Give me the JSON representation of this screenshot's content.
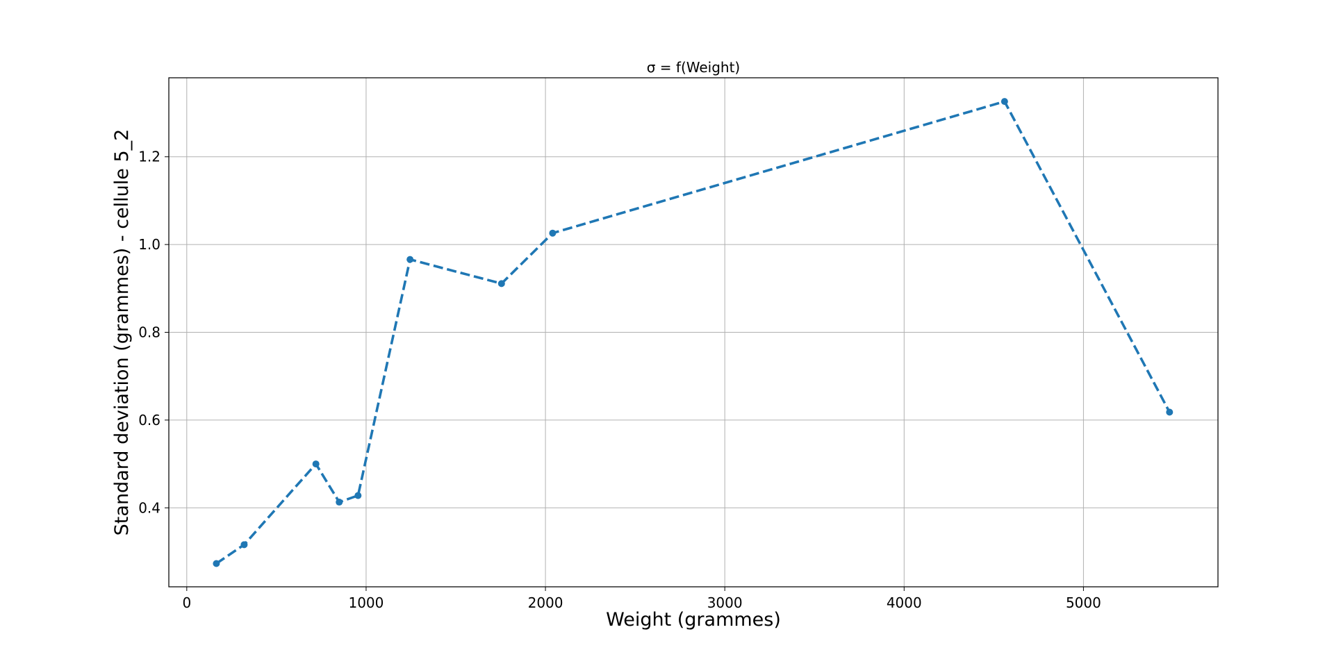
{
  "chart_data": {
    "type": "line",
    "title": "σ  = f(Weight)",
    "xlabel": "Weight (grammes)",
    "ylabel": "Standard deviation (grammes) - cellule 5_2",
    "xlim": [
      -100,
      5750
    ],
    "ylim": [
      0.22,
      1.38
    ],
    "xticks": [
      0,
      1000,
      2000,
      3000,
      4000,
      5000
    ],
    "xtick_labels": [
      "0",
      "1000",
      "2000",
      "3000",
      "4000",
      "5000"
    ],
    "yticks": [
      0.4,
      0.6,
      0.8,
      1.0,
      1.2
    ],
    "ytick_labels": [
      "0.4",
      "0.6",
      "0.8",
      "1.0",
      "1.2"
    ],
    "grid": true,
    "line_style": "dashed",
    "marker": "circle",
    "colors": {
      "series": "#1f77b4",
      "grid": "#b0b0b0",
      "axes": "#000000"
    },
    "series": [
      {
        "x": [
          165,
          320,
          720,
          850,
          955,
          1245,
          1755,
          2040,
          4560,
          5480
        ],
        "y": [
          0.273,
          0.316,
          0.5,
          0.413,
          0.428,
          0.966,
          0.911,
          1.026,
          1.326,
          0.618
        ]
      }
    ]
  }
}
